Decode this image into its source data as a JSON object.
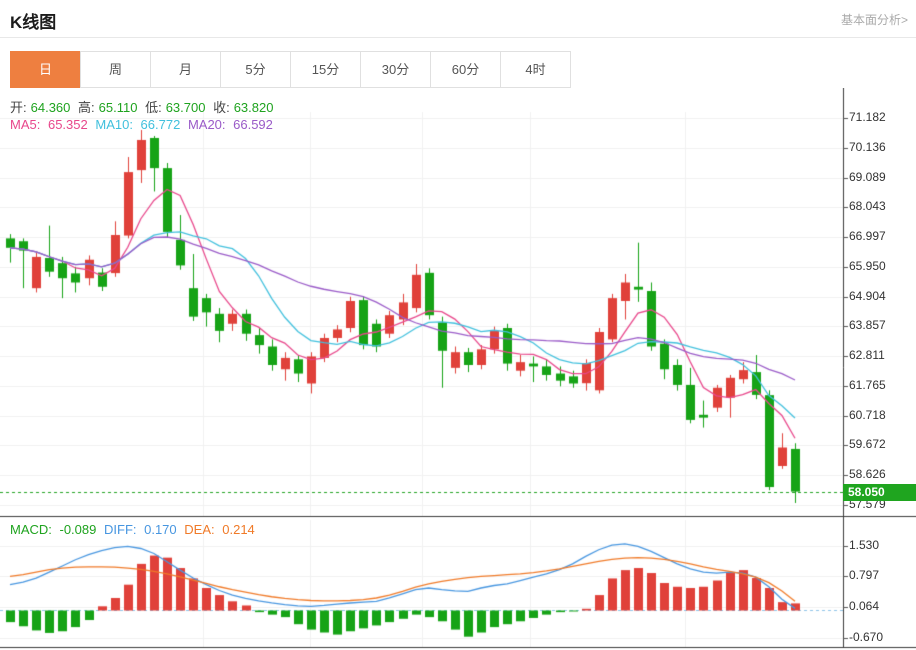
{
  "header": {
    "title": "K线图",
    "link": "基本面分析>"
  },
  "tabs": {
    "items": [
      {
        "name": "day",
        "label": "日",
        "selected": true
      },
      {
        "name": "week",
        "label": "周",
        "selected": false
      },
      {
        "name": "month",
        "label": "月",
        "selected": false
      },
      {
        "name": "5min",
        "label": "5分",
        "selected": false
      },
      {
        "name": "15min",
        "label": "15分",
        "selected": false
      },
      {
        "name": "30min",
        "label": "30分",
        "selected": false
      },
      {
        "name": "60min",
        "label": "60分",
        "selected": false
      },
      {
        "name": "4hour",
        "label": "4时",
        "selected": false
      }
    ]
  },
  "ohlc": {
    "open_label": "开:",
    "open": "64.360",
    "high_label": "高:",
    "high": "65.110",
    "low_label": "低:",
    "low": "63.700",
    "close_label": "收:",
    "close": "63.820"
  },
  "ma_info": {
    "ma5_label": "MA5: ",
    "ma5": "65.352",
    "ma10_label": "MA10: ",
    "ma10": "66.772",
    "ma20_label": "MA20: ",
    "ma20": "66.592"
  },
  "macd_info": {
    "macd_label": "MACD: ",
    "macd": "-0.089",
    "diff_label": "DIFF: ",
    "diff": "0.170",
    "dea_label": "DEA: ",
    "dea": "0.214"
  },
  "current_price": "58.050",
  "colors": {
    "up": "#e0413a",
    "down": "#16a316",
    "ma5": "#e8478b",
    "ma10": "#41c0dd",
    "ma20": "#9a5bc8",
    "ohlc_value": "#1fa31f",
    "macd_value": "#1fa31f",
    "diff_value": "#4796e0",
    "dea_value": "#f07a28",
    "tab_accent": "#ee7f40",
    "badge": "#1fa51f",
    "price_line": "#21a321",
    "grid": "#f0f0f0",
    "axis": "#3a3a3a",
    "zero_line": "#8fc4e8"
  },
  "chart_data": {
    "type": "candlestick",
    "title": "K线图 daily candlestick with MA5/MA10/MA20 overlays and MACD sub-chart",
    "candle_format": "[open, close, high, low]",
    "main": {
      "y_ticks": [
        "71.182",
        "70.136",
        "69.089",
        "68.043",
        "66.997",
        "65.950",
        "64.904",
        "63.857",
        "62.811",
        "61.765",
        "60.718",
        "59.672",
        "58.626",
        "57.579"
      ],
      "current_price": 58.05,
      "ma_periods": [
        5,
        10,
        20
      ],
      "candles": [
        [
          66.95,
          66.62,
          67.1,
          66.1
        ],
        [
          66.85,
          66.52,
          66.95,
          65.2
        ],
        [
          65.2,
          66.3,
          66.45,
          65.05
        ],
        [
          66.26,
          65.78,
          67.4,
          65.6
        ],
        [
          66.08,
          65.55,
          66.3,
          64.85
        ],
        [
          65.72,
          65.4,
          65.95,
          65.05
        ],
        [
          65.55,
          66.2,
          66.35,
          65.3
        ],
        [
          65.75,
          65.25,
          65.9,
          65.1
        ],
        [
          65.73,
          67.07,
          67.55,
          65.6
        ],
        [
          67.05,
          69.28,
          69.81,
          66.95
        ],
        [
          69.35,
          70.41,
          70.76,
          68.9
        ],
        [
          70.48,
          69.42,
          70.55,
          68.6
        ],
        [
          69.42,
          67.18,
          69.6,
          67.0
        ],
        [
          66.9,
          66.0,
          67.77,
          65.85
        ],
        [
          65.2,
          64.2,
          66.4,
          64.05
        ],
        [
          64.85,
          64.35,
          65.0,
          63.85
        ],
        [
          64.3,
          63.7,
          64.5,
          63.3
        ],
        [
          63.95,
          64.3,
          64.45,
          63.7
        ],
        [
          64.3,
          63.6,
          64.45,
          63.35
        ],
        [
          63.55,
          63.2,
          63.8,
          62.9
        ],
        [
          63.15,
          62.5,
          63.4,
          62.3
        ],
        [
          62.35,
          62.75,
          62.95,
          61.95
        ],
        [
          62.7,
          62.2,
          62.85,
          61.9
        ],
        [
          61.85,
          62.8,
          62.95,
          61.5
        ],
        [
          62.75,
          63.45,
          63.6,
          62.6
        ],
        [
          63.45,
          63.75,
          63.9,
          63.3
        ],
        [
          63.8,
          64.75,
          64.9,
          63.65
        ],
        [
          64.78,
          63.2,
          64.9,
          63.05
        ],
        [
          63.95,
          63.15,
          64.1,
          62.95
        ],
        [
          63.6,
          64.25,
          64.4,
          63.45
        ],
        [
          64.1,
          64.7,
          65.0,
          63.9
        ],
        [
          64.5,
          65.67,
          66.05,
          64.35
        ],
        [
          65.74,
          64.25,
          65.9,
          64.1
        ],
        [
          64.0,
          63.0,
          64.2,
          61.7
        ],
        [
          62.4,
          62.95,
          63.15,
          62.2
        ],
        [
          62.95,
          62.5,
          63.1,
          62.25
        ],
        [
          62.5,
          63.05,
          63.2,
          62.35
        ],
        [
          63.05,
          63.7,
          63.85,
          62.9
        ],
        [
          63.8,
          62.55,
          63.95,
          62.3
        ],
        [
          62.3,
          62.6,
          62.85,
          62.1
        ],
        [
          62.55,
          62.45,
          62.8,
          61.9
        ],
        [
          62.45,
          62.15,
          62.7,
          61.95
        ],
        [
          62.2,
          61.95,
          62.45,
          61.75
        ],
        [
          62.1,
          61.85,
          62.3,
          61.7
        ],
        [
          61.86,
          62.57,
          62.7,
          61.6
        ],
        [
          61.61,
          63.66,
          63.8,
          61.5
        ],
        [
          63.4,
          64.85,
          65.0,
          63.3
        ],
        [
          64.75,
          65.4,
          65.7,
          64.1
        ],
        [
          65.25,
          65.15,
          66.8,
          64.72
        ],
        [
          65.1,
          63.15,
          65.4,
          63.0
        ],
        [
          63.25,
          62.35,
          63.4,
          62.0
        ],
        [
          62.5,
          61.8,
          62.7,
          61.6
        ],
        [
          61.8,
          60.57,
          62.4,
          60.45
        ],
        [
          60.75,
          60.65,
          61.25,
          60.3
        ],
        [
          61.0,
          61.7,
          61.8,
          60.85
        ],
        [
          61.35,
          62.05,
          62.15,
          60.65
        ],
        [
          62.0,
          62.32,
          62.6,
          61.85
        ],
        [
          62.25,
          61.45,
          62.85,
          61.3
        ],
        [
          61.44,
          58.21,
          61.61,
          58.1
        ],
        [
          58.95,
          59.6,
          60.1,
          58.85
        ],
        [
          59.55,
          58.05,
          59.75,
          57.65
        ]
      ]
    },
    "macd": {
      "y_ticks": [
        "1.530",
        "0.797",
        "0.064",
        "-0.670"
      ],
      "hist": [
        -0.3,
        -0.4,
        -0.5,
        -0.56,
        -0.52,
        -0.42,
        -0.25,
        0.08,
        0.28,
        0.6,
        1.1,
        1.3,
        1.25,
        1.0,
        0.75,
        0.52,
        0.35,
        0.2,
        0.1,
        -0.06,
        -0.12,
        -0.18,
        -0.35,
        -0.48,
        -0.55,
        -0.6,
        -0.52,
        -0.45,
        -0.38,
        -0.3,
        -0.22,
        -0.12,
        -0.18,
        -0.28,
        -0.48,
        -0.65,
        -0.55,
        -0.42,
        -0.35,
        -0.28,
        -0.2,
        -0.12,
        -0.06,
        -0.04,
        0.02,
        0.35,
        0.75,
        0.95,
        1.0,
        0.88,
        0.64,
        0.55,
        0.52,
        0.55,
        0.7,
        0.88,
        0.95,
        0.76,
        0.52,
        0.18,
        0.15
      ],
      "diff": [
        0.6,
        0.66,
        0.76,
        0.9,
        1.05,
        1.2,
        1.32,
        1.42,
        1.49,
        1.52,
        1.47,
        1.35,
        1.15,
        0.95,
        0.76,
        0.6,
        0.46,
        0.35,
        0.27,
        0.21,
        0.16,
        0.12,
        0.09,
        0.08,
        0.1,
        0.13,
        0.16,
        0.18,
        0.2,
        0.28,
        0.38,
        0.48,
        0.52,
        0.48,
        0.45,
        0.44,
        0.52,
        0.58,
        0.62,
        0.7,
        0.78,
        0.86,
        0.96,
        1.1,
        1.28,
        1.44,
        1.55,
        1.58,
        1.52,
        1.4,
        1.25,
        1.1,
        0.98,
        0.9,
        0.88,
        0.9,
        0.88,
        0.78,
        0.55,
        0.25,
        0.03
      ],
      "dea": [
        0.8,
        0.84,
        0.9,
        0.96,
        1.0,
        1.02,
        1.03,
        1.03,
        1.02,
        1.0,
        0.97,
        0.92,
        0.86,
        0.79,
        0.71,
        0.63,
        0.55,
        0.48,
        0.42,
        0.36,
        0.31,
        0.27,
        0.24,
        0.22,
        0.21,
        0.21,
        0.22,
        0.24,
        0.28,
        0.35,
        0.44,
        0.54,
        0.62,
        0.68,
        0.73,
        0.77,
        0.8,
        0.82,
        0.84,
        0.86,
        0.89,
        0.93,
        0.98,
        1.04,
        1.1,
        1.16,
        1.21,
        1.24,
        1.25,
        1.24,
        1.21,
        1.16,
        1.1,
        1.03,
        0.97,
        0.92,
        0.86,
        0.78,
        0.65,
        0.45,
        0.2
      ]
    }
  }
}
